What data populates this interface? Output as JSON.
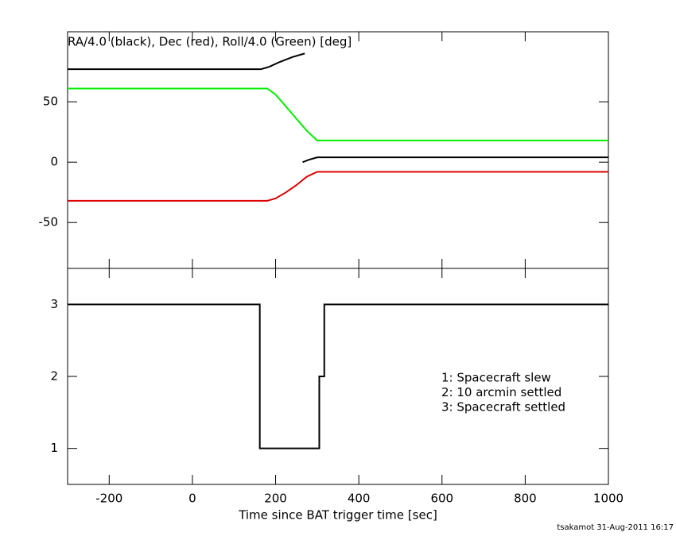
{
  "chart_data": [
    {
      "type": "line",
      "title": "RA/4.0 (black), Dec (red), Roll/4.0 (Green) [deg]",
      "xlim": [
        -300,
        1000
      ],
      "xticks": [
        -200,
        0,
        200,
        400,
        600,
        800,
        1000
      ],
      "ylim": [
        -88,
        108
      ],
      "yticks": [
        -50,
        0,
        50
      ],
      "series": [
        {
          "color": "#000000",
          "x": [
            -300,
            165,
            185,
            210,
            240,
            270
          ],
          "values": [
            77,
            77,
            79,
            83,
            87,
            90
          ]
        },
        {
          "color": "#000000",
          "x": [
            265,
            280,
            300,
            1000
          ],
          "values": [
            0,
            2,
            4,
            4
          ]
        },
        {
          "color": "#00ee00",
          "x": [
            -300,
            180,
            200,
            225,
            250,
            275,
            300,
            1000
          ],
          "values": [
            61,
            61,
            56,
            46,
            36,
            26,
            18,
            18
          ]
        },
        {
          "color": "#dd0000",
          "x": [
            -300,
            180,
            200,
            225,
            250,
            275,
            300,
            1000
          ],
          "values": [
            -32,
            -32,
            -30,
            -25,
            -19,
            -12,
            -8,
            -8
          ]
        }
      ]
    },
    {
      "type": "line",
      "xlabel": "Time since BAT trigger time [sec]",
      "xlim": [
        -300,
        1000
      ],
      "xticks": [
        -200,
        0,
        200,
        400,
        600,
        800,
        1000
      ],
      "ylim": [
        0.5,
        3.5
      ],
      "yticks": [
        1,
        2,
        3
      ],
      "annotations": [
        "1: Spacecraft slew",
        "2: 10 arcmin settled",
        "3: Spacecraft settled"
      ],
      "series": [
        {
          "color": "#000000",
          "x": [
            -300,
            162,
            162,
            305,
            305,
            317,
            317,
            1000
          ],
          "values": [
            3,
            3,
            1,
            1,
            2,
            2,
            3,
            3
          ]
        }
      ]
    }
  ],
  "footer": "tsakamot 31-Aug-2011 16:17"
}
